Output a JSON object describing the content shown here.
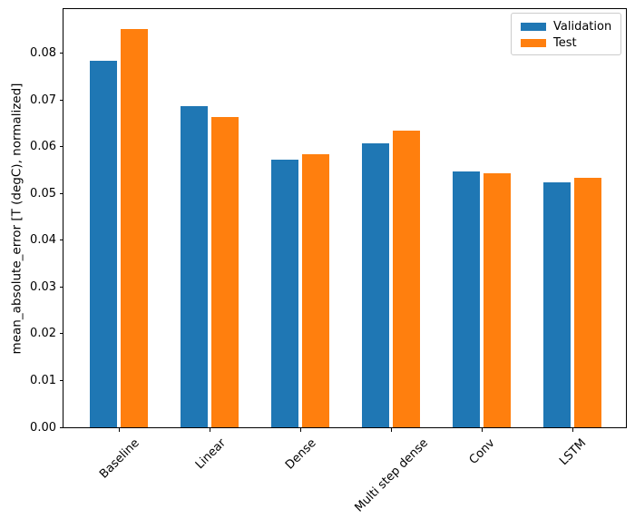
{
  "chart_data": {
    "type": "bar",
    "title": "",
    "categories": [
      "Baseline",
      "Linear",
      "Dense",
      "Multi step dense",
      "Conv",
      "LSTM"
    ],
    "series": [
      {
        "name": "Validation",
        "color": "#1f77b4",
        "values": [
          0.0785,
          0.0688,
          0.0572,
          0.0607,
          0.0547,
          0.0525
        ]
      },
      {
        "name": "Test",
        "color": "#ff7f0e",
        "values": [
          0.0852,
          0.0663,
          0.0585,
          0.0635,
          0.0544,
          0.0534
        ]
      }
    ],
    "xlabel": "",
    "ylabel": "mean_absolute_error [T (degC), normalized]",
    "ylim": [
      0,
      0.0895
    ],
    "yticks": [
      0,
      0.01,
      0.02,
      0.03,
      0.04,
      0.05,
      0.06,
      0.07,
      0.08
    ],
    "ytick_labels": [
      "0.00",
      "0.01",
      "0.02",
      "0.03",
      "0.04",
      "0.05",
      "0.06",
      "0.07",
      "0.08"
    ],
    "xtick_rotation_deg": 45,
    "grid": false,
    "legend_position": "upper right"
  }
}
